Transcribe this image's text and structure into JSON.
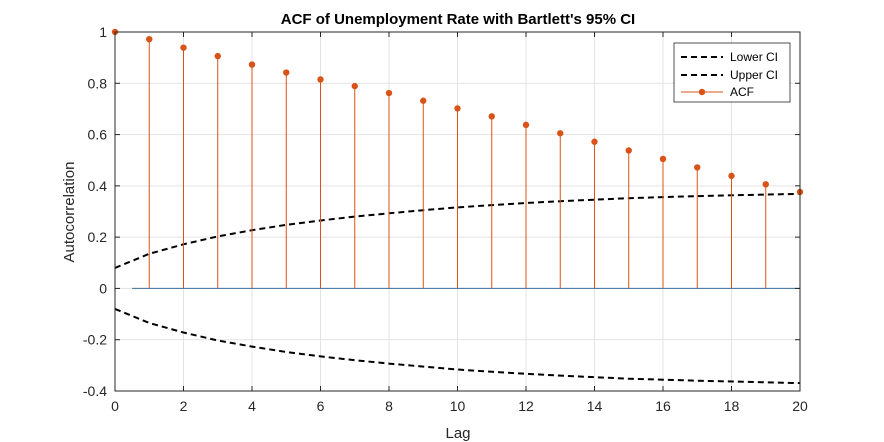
{
  "chart_data": {
    "type": "line",
    "title": "ACF of Unemployment Rate with Bartlett's 95% CI",
    "xlabel": "Lag",
    "ylabel": "Autocorrelation",
    "xlim": [
      0,
      20
    ],
    "ylim": [
      -0.4,
      1
    ],
    "xticks": [
      0,
      2,
      4,
      6,
      8,
      10,
      12,
      14,
      16,
      18,
      20
    ],
    "xtick_labels": [
      "0",
      "2",
      "4",
      "6",
      "8",
      "10",
      "12",
      "14",
      "16",
      "18",
      "20"
    ],
    "yticks": [
      -0.4,
      -0.2,
      0,
      0.2,
      0.4,
      0.6,
      0.8,
      1
    ],
    "ytick_labels": [
      "-0.4",
      "-0.2",
      "0",
      "0.2",
      "0.4",
      "0.6",
      "0.8",
      "1"
    ],
    "grid": true,
    "legend_position": "top-right",
    "zero_line_range": [
      0.5,
      20
    ],
    "series": [
      {
        "name": "Lower CI",
        "style": "dashed",
        "color": "#000000",
        "x": [
          0,
          1,
          2,
          3,
          4,
          5,
          6,
          7,
          8,
          9,
          10,
          11,
          12,
          13,
          14,
          15,
          16,
          17,
          18,
          19,
          20
        ],
        "values": [
          -0.08,
          -0.135,
          -0.172,
          -0.203,
          -0.227,
          -0.248,
          -0.265,
          -0.28,
          -0.293,
          -0.305,
          -0.316,
          -0.325,
          -0.333,
          -0.34,
          -0.346,
          -0.352,
          -0.356,
          -0.36,
          -0.363,
          -0.366,
          -0.369
        ]
      },
      {
        "name": "Upper CI",
        "style": "dashed",
        "color": "#000000",
        "x": [
          0,
          1,
          2,
          3,
          4,
          5,
          6,
          7,
          8,
          9,
          10,
          11,
          12,
          13,
          14,
          15,
          16,
          17,
          18,
          19,
          20
        ],
        "values": [
          0.08,
          0.135,
          0.172,
          0.203,
          0.227,
          0.248,
          0.265,
          0.28,
          0.293,
          0.305,
          0.316,
          0.325,
          0.333,
          0.34,
          0.346,
          0.352,
          0.356,
          0.36,
          0.363,
          0.366,
          0.369
        ]
      },
      {
        "name": "ACF",
        "style": "stem",
        "color": "#D95319",
        "x": [
          0,
          1,
          2,
          3,
          4,
          5,
          6,
          7,
          8,
          9,
          10,
          11,
          12,
          13,
          14,
          15,
          16,
          17,
          18,
          19,
          20
        ],
        "values": [
          1.0,
          0.972,
          0.939,
          0.906,
          0.873,
          0.842,
          0.815,
          0.789,
          0.762,
          0.732,
          0.702,
          0.671,
          0.638,
          0.605,
          0.572,
          0.538,
          0.505,
          0.472,
          0.439,
          0.406,
          0.376
        ]
      }
    ],
    "colors": {
      "zero_line": "#4D7FA8",
      "grid": "#E3E3E3",
      "axis": "#262626"
    }
  }
}
